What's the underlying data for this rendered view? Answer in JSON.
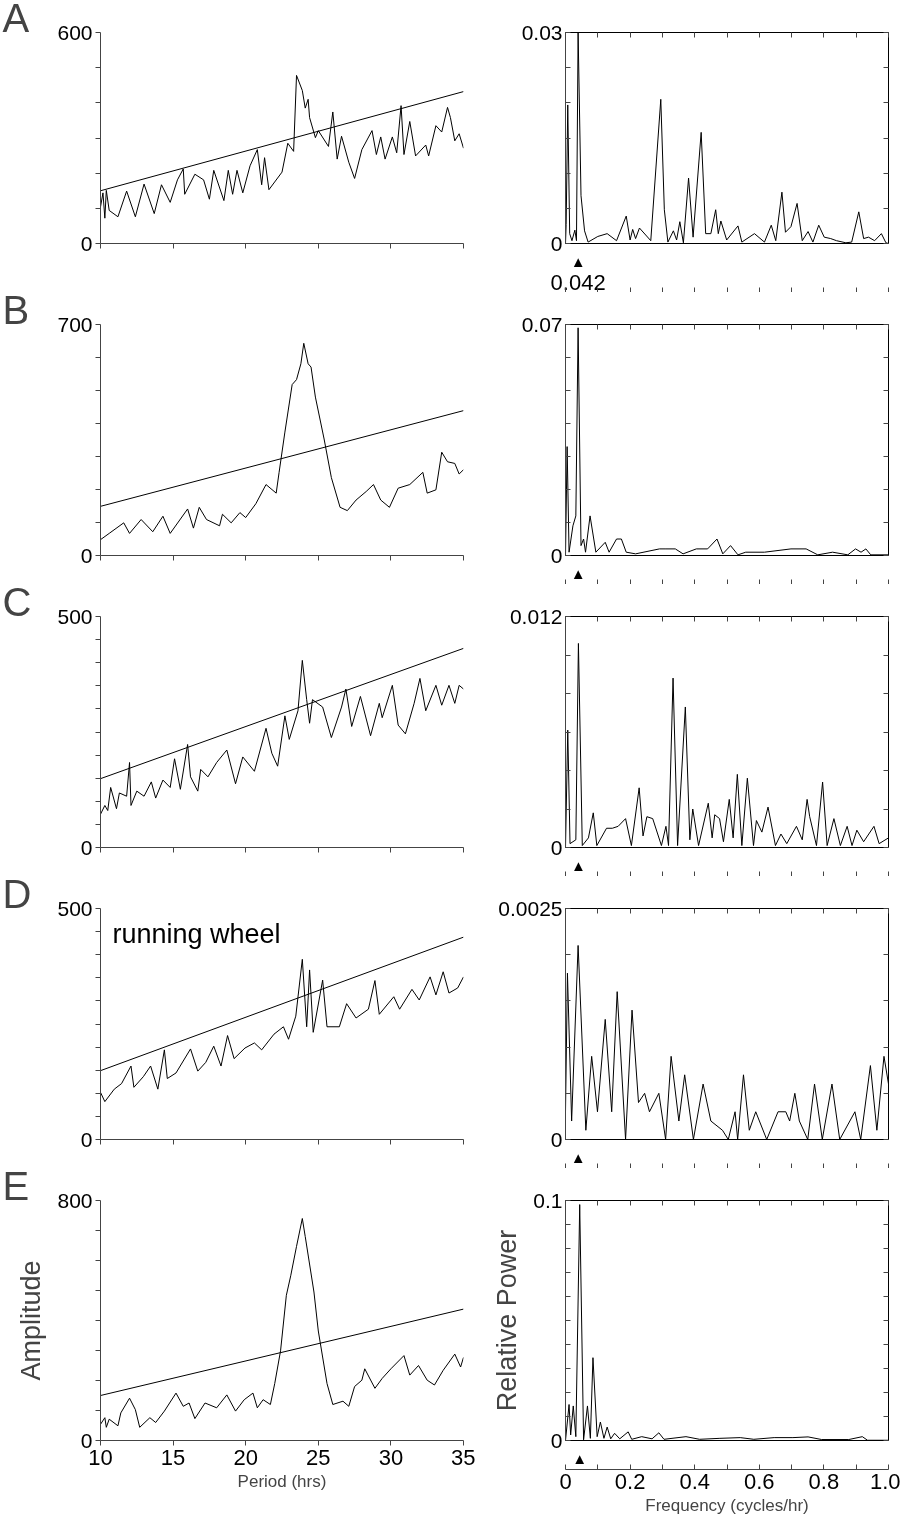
{
  "chart_data": [
    {
      "type": "line",
      "title": "A",
      "xlim": [
        10,
        35
      ],
      "ylim": [
        0,
        600
      ],
      "xticks": [
        10,
        15,
        20,
        25,
        30,
        35
      ],
      "yticks": [
        0,
        {
          "value": 100,
          "label": null
        },
        {
          "value": 200,
          "label": null
        },
        {
          "value": 300,
          "label": null
        },
        {
          "value": 400,
          "label": null
        },
        {
          "value": 500,
          "label": null
        },
        600
      ],
      "tick_labels": "y",
      "series": [
        {
          "type": "line",
          "color": "#000000",
          "x": [
            10,
            10.17,
            10.3,
            10.4,
            10.6,
            11.2,
            11.8,
            12.4,
            13.0,
            13.7,
            14.2,
            14.8,
            15.3,
            15.7,
            15.8,
            16.5,
            17.1,
            17.5,
            17.8,
            18.5,
            18.8,
            19.1,
            19.4,
            19.8,
            20.3,
            20.8,
            21.1,
            21.3,
            21.6,
            22.5,
            22.9,
            23.3,
            23.5,
            23.9,
            24.1,
            24.3,
            24.4,
            24.8,
            25.0,
            25.7,
            26.0,
            26.3,
            26.6,
            27.1,
            27.5,
            28.0,
            28.7,
            29.0,
            29.3,
            29.6,
            30.1,
            30.4,
            30.7,
            30.9,
            31.3,
            31.7,
            32.4,
            32.6,
            33.1,
            33.5,
            33.9,
            34.1,
            34.4,
            34.7,
            35.0
          ],
          "values": [
            104,
            144,
            72,
            151,
            94,
            76,
            149,
            76,
            169,
            85,
            167,
            117,
            181,
            212,
            140,
            197,
            181,
            126,
            208,
            122,
            208,
            140,
            208,
            144,
            221,
            267,
            167,
            244,
            153,
            203,
            285,
            262,
            478,
            435,
            385,
            410,
            358,
            301,
            321,
            276,
            374,
            240,
            305,
            231,
            185,
            267,
            321,
            253,
            303,
            240,
            303,
            258,
            392,
            253,
            347,
            249,
            280,
            249,
            335,
            317,
            387,
            358,
            292,
            312,
            271
          ]
        },
        {
          "type": "line",
          "color": "#000000",
          "x": [
            10,
            35
          ],
          "values": [
            150,
            432
          ]
        }
      ]
    },
    {
      "type": "line",
      "xlim": [
        0,
        1
      ],
      "ylim": [
        0,
        0.03
      ],
      "xticks": [
        0,
        0.1,
        0.2,
        0.3,
        0.4,
        0.5,
        0.6,
        0.7,
        0.8,
        0.9,
        1
      ],
      "yticks": [
        0,
        {
          "value": 0.005,
          "label": null
        },
        {
          "value": 0.01,
          "label": null
        },
        {
          "value": 0.015,
          "label": null
        },
        {
          "value": 0.02,
          "label": null
        },
        {
          "value": 0.025,
          "label": null
        },
        0.03
      ],
      "tick_labels": "y",
      "annotations": [
        "▲",
        "0.042"
      ],
      "series": [
        {
          "type": "line",
          "color": "#000000",
          "x": [
            0,
            0.002,
            0.007,
            0.013,
            0.02,
            0.029,
            0.034,
            0.039,
            0.048,
            0.059,
            0.07,
            0.1,
            0.129,
            0.158,
            0.188,
            0.2,
            0.208,
            0.217,
            0.229,
            0.264,
            0.295,
            0.306,
            0.317,
            0.334,
            0.344,
            0.354,
            0.365,
            0.381,
            0.395,
            0.42,
            0.434,
            0.45,
            0.465,
            0.473,
            0.481,
            0.499,
            0.534,
            0.546,
            0.585,
            0.616,
            0.637,
            0.651,
            0.67,
            0.681,
            0.698,
            0.717,
            0.733,
            0.751,
            0.766,
            0.784,
            0.801,
            0.821,
            0.839,
            0.868,
            0.886,
            0.908,
            0.923,
            0.938,
            0.957,
            0.978,
            0.992,
            1.0
          ],
          "values": [
            0,
            0.0027,
            0.0197,
            0.0014,
            0.0004,
            0.0019,
            0.0004,
            0.03,
            0.0068,
            0.0018,
            0.0002,
            0.001,
            0.0014,
            0.0004,
            0.0039,
            0.0005,
            0.002,
            0.0007,
            0.0022,
            0.0004,
            0.0205,
            0.0048,
            0.0002,
            0.0018,
            0.0005,
            0.0031,
            0.0001,
            0.0093,
            0.0009,
            0.0158,
            0.0014,
            0.0014,
            0.0048,
            0.0014,
            0.0032,
            0.0005,
            0.0025,
            0.0002,
            0.0014,
            0.0002,
            0.0026,
            0.0004,
            0.0073,
            0.0016,
            0.0024,
            0.0057,
            0.0004,
            0.0017,
            0.0002,
            0.0026,
            0.0009,
            0.0007,
            0.0004,
            0.0001,
            0.0002,
            0.0045,
            0.0007,
            0.0009,
            0.0004,
            0.0014,
            0.0001,
            0
          ]
        }
      ]
    },
    {
      "type": "line",
      "title": "B",
      "xlim": [
        10,
        35
      ],
      "ylim": [
        0,
        700
      ],
      "xticks": [
        10,
        15,
        20,
        25,
        30,
        35
      ],
      "yticks": [
        0,
        {
          "value": 100,
          "label": null
        },
        {
          "value": 200,
          "label": null
        },
        {
          "value": 300,
          "label": null
        },
        {
          "value": 400,
          "label": null
        },
        {
          "value": 500,
          "label": null
        },
        {
          "value": 600,
          "label": null
        },
        700
      ],
      "tick_labels": "y",
      "series": [
        {
          "type": "line",
          "color": "#000000",
          "x": [
            10,
            10.6,
            11.6,
            12.0,
            12.8,
            13.6,
            14.3,
            14.8,
            16.0,
            16.4,
            16.8,
            17.3,
            18.2,
            18.4,
            19.0,
            19.6,
            20.0,
            20.7,
            21.4,
            22.1,
            22.3,
            22.7,
            23.2,
            23.5,
            23.8,
            24.0,
            24.3,
            24.5,
            24.8,
            25.4,
            25.9,
            26.5,
            27.0,
            27.6,
            28.3,
            28.8,
            29.3,
            29.9,
            30.5,
            31.3,
            32.2,
            32.5,
            33.1,
            33.5,
            33.9,
            34.4,
            34.7,
            35.0
          ],
          "values": [
            48,
            67,
            99,
            67,
            109,
            72,
            119,
            67,
            141,
            83,
            146,
            109,
            90,
            125,
            99,
            130,
            115,
            157,
            215,
            189,
            252,
            374,
            518,
            533,
            581,
            643,
            581,
            571,
            480,
            353,
            236,
            146,
            136,
            168,
            194,
            215,
            168,
            146,
            204,
            215,
            252,
            189,
            199,
            313,
            284,
            279,
            247,
            260
          ]
        },
        {
          "type": "line",
          "color": "#000000",
          "x": [
            10,
            35
          ],
          "values": [
            149,
            439
          ]
        }
      ]
    },
    {
      "type": "line",
      "xlim": [
        0,
        1
      ],
      "ylim": [
        0,
        0.07
      ],
      "xticks": [
        0,
        0.1,
        0.2,
        0.3,
        0.4,
        0.5,
        0.6,
        0.7,
        0.8,
        0.9,
        1
      ],
      "yticks": [
        0,
        {
          "value": 0.01,
          "label": null
        },
        {
          "value": 0.02,
          "label": null
        },
        {
          "value": 0.03,
          "label": null
        },
        {
          "value": 0.04,
          "label": null
        },
        {
          "value": 0.05,
          "label": null
        },
        {
          "value": 0.06,
          "label": null
        },
        0.07
      ],
      "tick_labels": "y",
      "annotations": [
        "▲"
      ],
      "series": [
        {
          "type": "line",
          "color": "#000000",
          "x": [
            0,
            0.005,
            0.011,
            0.023,
            0.032,
            0.039,
            0.048,
            0.056,
            0.062,
            0.076,
            0.094,
            0.123,
            0.135,
            0.158,
            0.173,
            0.188,
            0.217,
            0.291,
            0.311,
            0.34,
            0.364,
            0.405,
            0.44,
            0.469,
            0.487,
            0.511,
            0.534,
            0.558,
            0.616,
            0.698,
            0.745,
            0.781,
            0.827,
            0.874,
            0.898,
            0.915,
            0.93,
            0.945,
            1.0
          ],
          "values": [
            0,
            0.033,
            0.001,
            0.009,
            0.012,
            0.069,
            0.003,
            0.005,
            0.001,
            0.012,
            0.001,
            0.004,
            0.001,
            0.005,
            0.005,
            0.001,
            0.0005,
            0.002,
            0.002,
            0.002,
            0.0005,
            0.002,
            0.002,
            0.005,
            0.0005,
            0.003,
            0.0002,
            0.001,
            0.001,
            0.002,
            0.002,
            0.0002,
            0.001,
            0.0002,
            0.002,
            0.001,
            0.002,
            0.0002,
            0.0002
          ]
        }
      ]
    },
    {
      "type": "line",
      "title": "C",
      "xlim": [
        10,
        35
      ],
      "ylim": [
        0,
        500
      ],
      "xticks": [
        10,
        15,
        20,
        25,
        30,
        35
      ],
      "yticks": [
        0,
        {
          "value": 50,
          "label": null
        },
        {
          "value": 100,
          "label": null
        },
        {
          "value": 150,
          "label": null
        },
        {
          "value": 200,
          "label": null
        },
        {
          "value": 250,
          "label": null
        },
        {
          "value": 300,
          "label": null
        },
        {
          "value": 350,
          "label": null
        },
        {
          "value": 400,
          "label": null
        },
        {
          "value": 450,
          "label": null
        },
        500
      ],
      "tick_labels": "y",
      "series": [
        {
          "type": "line",
          "color": "#000000",
          "x": [
            10,
            10.3,
            10.5,
            10.7,
            11.1,
            11.3,
            11.8,
            12.0,
            12.1,
            12.5,
            13.0,
            13.5,
            13.8,
            14.3,
            14.8,
            15.1,
            15.5,
            16.0,
            16.2,
            16.7,
            16.9,
            17.4,
            18.0,
            18.7,
            19.3,
            19.8,
            20.6,
            21.4,
            21.8,
            22.2,
            22.7,
            23.0,
            23.6,
            23.9,
            24.2,
            24.4,
            24.6,
            25.3,
            25.9,
            26.6,
            26.9,
            27.3,
            27.9,
            28.6,
            29.2,
            29.4,
            30.1,
            30.5,
            31.0,
            31.6,
            32.0,
            32.4,
            33.1,
            33.5,
            34.0,
            34.4,
            34.7,
            35.0
          ],
          "values": [
            72,
            91,
            80,
            130,
            84,
            118,
            111,
            184,
            91,
            122,
            111,
            142,
            107,
            146,
            130,
            192,
            126,
            223,
            153,
            122,
            169,
            153,
            184,
            211,
            138,
            196,
            165,
            258,
            204,
            176,
            285,
            234,
            296,
            405,
            320,
            269,
            320,
            304,
            238,
            304,
            343,
            262,
            327,
            242,
            312,
            281,
            351,
            265,
            246,
            312,
            366,
            296,
            351,
            308,
            351,
            312,
            351,
            343
          ]
        },
        {
          "type": "line",
          "color": "#000000",
          "x": [
            10,
            35
          ],
          "values": [
            149,
            431
          ]
        }
      ]
    },
    {
      "type": "line",
      "xlim": [
        0,
        1
      ],
      "ylim": [
        0,
        0.012
      ],
      "xticks": [
        0,
        0.1,
        0.2,
        0.3,
        0.4,
        0.5,
        0.6,
        0.7,
        0.8,
        0.9,
        1
      ],
      "yticks": [
        0,
        {
          "value": 0.002,
          "label": null
        },
        {
          "value": 0.004,
          "label": null
        },
        {
          "value": 0.006,
          "label": null
        },
        {
          "value": 0.008,
          "label": null
        },
        {
          "value": 0.01,
          "label": null
        },
        0.012
      ],
      "tick_labels": "y",
      "annotations": [
        "▲"
      ],
      "series": [
        {
          "type": "line",
          "color": "#000000",
          "x": [
            0,
            0.007,
            0.014,
            0.032,
            0.04,
            0.052,
            0.071,
            0.086,
            0.097,
            0.127,
            0.145,
            0.163,
            0.186,
            0.204,
            0.228,
            0.24,
            0.252,
            0.27,
            0.297,
            0.311,
            0.319,
            0.333,
            0.347,
            0.371,
            0.385,
            0.394,
            0.412,
            0.442,
            0.454,
            0.462,
            0.477,
            0.489,
            0.507,
            0.519,
            0.532,
            0.546,
            0.563,
            0.582,
            0.591,
            0.608,
            0.627,
            0.65,
            0.667,
            0.685,
            0.715,
            0.733,
            0.748,
            0.756,
            0.777,
            0.796,
            0.81,
            0.831,
            0.851,
            0.872,
            0.887,
            0.902,
            0.923,
            0.955,
            0.971,
            1.0
          ],
          "values": [
            0,
            0.0061,
            0.0002,
            0.0004,
            0.0106,
            0.0001,
            0.0005,
            0.0018,
            0.0001,
            0.001,
            0.001,
            0.0011,
            0.0015,
            0.0001,
            0.0031,
            0.0006,
            0.0016,
            0.0015,
            0.0001,
            0.0011,
            0.0001,
            0.0088,
            0.0001,
            0.0073,
            0.0004,
            0.002,
            0.0001,
            0.0023,
            0.0005,
            0.0017,
            0.0015,
            0.0003,
            0.0025,
            0.0005,
            0.0038,
            0.0001,
            0.0036,
            0.0001,
            0.0014,
            0.0008,
            0.0021,
            0.0001,
            0.0007,
            0.0002,
            0.0011,
            0.0004,
            0.0025,
            0.0016,
            0.0001,
            0.0034,
            0.0001,
            0.0015,
            0.0001,
            0.0011,
            0.0001,
            0.0009,
            0.0003,
            0.0011,
            0.0002,
            0.0005
          ]
        }
      ]
    },
    {
      "type": "line",
      "title": "D",
      "xlim": [
        10,
        35
      ],
      "ylim": [
        0,
        500
      ],
      "xticks": [
        10,
        15,
        20,
        25,
        30,
        35
      ],
      "yticks": [
        0,
        {
          "value": 50,
          "label": null
        },
        {
          "value": 100,
          "label": null
        },
        {
          "value": 150,
          "label": null
        },
        {
          "value": 200,
          "label": null
        },
        {
          "value": 250,
          "label": null
        },
        {
          "value": 300,
          "label": null
        },
        {
          "value": 350,
          "label": null
        },
        {
          "value": 400,
          "label": null
        },
        {
          "value": 450,
          "label": null
        },
        500
      ],
      "tick_labels": "y",
      "annotations": [
        "running wheel"
      ],
      "series": [
        {
          "type": "line",
          "color": "#000000",
          "x": [
            10,
            10.3,
            10.95,
            11.45,
            12.1,
            12.3,
            12.95,
            13.45,
            13.95,
            14.4,
            14.6,
            15.2,
            16.2,
            16.7,
            17.25,
            17.8,
            18.3,
            18.75,
            19.2,
            19.95,
            20.6,
            21.1,
            21.95,
            22.6,
            22.95,
            23.45,
            23.9,
            24.2,
            24.4,
            24.65,
            25.3,
            25.6,
            26.45,
            26.95,
            27.6,
            28.45,
            28.9,
            29.2,
            30.2,
            30.6,
            31.45,
            31.95,
            32.7,
            33.1,
            33.6,
            34.0,
            34.6,
            35.0
          ],
          "values": [
            102,
            82,
            109,
            121,
            159,
            113,
            136,
            159,
            109,
            194,
            132,
            144,
            196,
            148,
            167,
            202,
            159,
            225,
            175,
            198,
            209,
            194,
            228,
            244,
            217,
            267,
            390,
            244,
            367,
            232,
            345,
            244,
            244,
            294,
            263,
            282,
            344,
            271,
            309,
            282,
            325,
            302,
            352,
            313,
            363,
            317,
            328,
            352
          ]
        },
        {
          "type": "line",
          "color": "#000000",
          "x": [
            10,
            35
          ],
          "values": [
            149,
            438
          ]
        }
      ]
    },
    {
      "type": "line",
      "xlim": [
        0,
        1
      ],
      "ylim": [
        0,
        0.0025
      ],
      "xticks": [
        0,
        0.1,
        0.2,
        0.3,
        0.4,
        0.5,
        0.6,
        0.7,
        0.8,
        0.9,
        1
      ],
      "yticks": [
        0,
        {
          "value": 0.0005,
          "label": null
        },
        {
          "value": 0.001,
          "label": null
        },
        {
          "value": 0.0015,
          "label": null
        },
        {
          "value": 0.002,
          "label": null
        },
        0.0025
      ],
      "tick_labels": "y",
      "annotations": [
        "▲"
      ],
      "series": [
        {
          "type": "line",
          "color": "#000000",
          "x": [
            0,
            0.006,
            0.019,
            0.039,
            0.063,
            0.081,
            0.099,
            0.123,
            0.143,
            0.16,
            0.186,
            0.206,
            0.226,
            0.245,
            0.26,
            0.289,
            0.31,
            0.327,
            0.351,
            0.369,
            0.396,
            0.426,
            0.45,
            0.486,
            0.504,
            0.525,
            0.533,
            0.551,
            0.569,
            0.589,
            0.623,
            0.658,
            0.682,
            0.694,
            0.71,
            0.724,
            0.75,
            0.771,
            0.795,
            0.825,
            0.849,
            0.896,
            0.914,
            0.944,
            0.964,
            0.986,
            1.0
          ],
          "values": [
            0.0003,
            0.0018,
            0.0002,
            0.0021,
            0.0001,
            0.0009,
            0.0003,
            0.0013,
            0.0003,
            0.0016,
            0,
            0.0014,
            0.0004,
            0.0005,
            0.0003,
            0.0005,
            0,
            0.0009,
            0.0002,
            0.0007,
            0,
            0.0006,
            0.0002,
            0.0001,
            0,
            0.0003,
            0,
            0.0007,
            0.0001,
            0.0003,
            0,
            0.0003,
            0.0003,
            0.0002,
            0.0005,
            0.0002,
            0,
            0.0006,
            0,
            0.0006,
            0,
            0.0003,
            0,
            0.0008,
            0.0001,
            0.0009,
            0.0006
          ]
        }
      ]
    },
    {
      "type": "line",
      "title": "E",
      "xlabel": "Period (hrs)",
      "ylabel": "Amplitude",
      "xlim": [
        10,
        35
      ],
      "ylim": [
        0,
        800
      ],
      "xticks": [
        10,
        15,
        20,
        25,
        30,
        35
      ],
      "yticks": [
        0,
        {
          "value": 100,
          "label": null
        },
        {
          "value": 200,
          "label": null
        },
        {
          "value": 300,
          "label": null
        },
        {
          "value": 400,
          "label": null
        },
        {
          "value": 500,
          "label": null
        },
        {
          "value": 600,
          "label": null
        },
        {
          "value": 700,
          "label": null
        },
        800
      ],
      "series": [
        {
          "type": "line",
          "color": "#000000",
          "x": [
            10,
            10.3,
            10.4,
            10.6,
            11.2,
            11.4,
            12.0,
            12.4,
            12.7,
            13.4,
            13.8,
            14.4,
            15.2,
            15.7,
            16.1,
            16.5,
            17.2,
            18.0,
            18.7,
            19.3,
            19.9,
            20.5,
            20.8,
            21.2,
            21.7,
            22.0,
            22.4,
            22.8,
            23.1,
            23.5,
            23.9,
            24.1,
            24.7,
            25.0,
            25.6,
            26.0,
            26.7,
            27.1,
            27.5,
            28.0,
            28.2,
            28.9,
            29.4,
            30.0,
            30.9,
            31.3,
            31.9,
            32.5,
            33.0,
            33.6,
            34.4,
            34.8,
            35.0
          ],
          "values": [
            54,
            76,
            44,
            71,
            49,
            92,
            141,
            103,
            44,
            76,
            60,
            98,
            158,
            114,
            125,
            73,
            125,
            109,
            152,
            98,
            136,
            158,
            109,
            136,
            120,
            190,
            299,
            484,
            549,
            647,
            740,
            680,
            495,
            365,
            190,
            120,
            131,
            114,
            180,
            201,
            239,
            174,
            207,
            239,
            283,
            218,
            250,
            201,
            185,
            234,
            288,
            245,
            277
          ]
        },
        {
          "type": "line",
          "color": "#000000",
          "x": [
            10,
            35
          ],
          "values": [
            150,
            438
          ]
        }
      ]
    },
    {
      "type": "line",
      "xlabel": "Frequency (cycles/hr)",
      "ylabel": "Relative Power",
      "xlim": [
        0,
        1
      ],
      "ylim": [
        0,
        0.1
      ],
      "xticks": [
        0,
        {
          "value": 0.1,
          "label": null
        },
        0.2,
        {
          "value": 0.3,
          "label": null
        },
        0.4,
        {
          "value": 0.5,
          "label": null
        },
        0.6,
        {
          "value": 0.7,
          "label": null
        },
        0.8,
        {
          "value": 0.9,
          "label": null
        },
        {
          "value": 1,
          "label": "1.0"
        }
      ],
      "yticks": [
        0,
        {
          "value": 0.01,
          "label": null
        },
        {
          "value": 0.02,
          "label": null
        },
        {
          "value": 0.03,
          "label": null
        },
        {
          "value": 0.04,
          "label": null
        },
        {
          "value": 0.05,
          "label": null
        },
        {
          "value": 0.06,
          "label": null
        },
        {
          "value": 0.07,
          "label": null
        },
        {
          "value": 0.08,
          "label": null
        },
        {
          "value": 0.09,
          "label": null
        },
        0.1
      ],
      "annotations": [
        "▲"
      ],
      "series": [
        {
          "type": "line",
          "color": "#000000",
          "x": [
            0,
            0.011,
            0.016,
            0.024,
            0.032,
            0.044,
            0.056,
            0.068,
            0.077,
            0.085,
            0.098,
            0.108,
            0.119,
            0.129,
            0.14,
            0.152,
            0.168,
            0.194,
            0.205,
            0.236,
            0.268,
            0.289,
            0.305,
            0.373,
            0.415,
            0.478,
            0.541,
            0.583,
            0.646,
            0.704,
            0.751,
            0.793,
            0.877,
            0.919,
            0.935,
            1.0
          ],
          "values": [
            0,
            0.015,
            0.0023,
            0.0144,
            0.0016,
            0.0983,
            0.0003,
            0.0144,
            0.0009,
            0.0345,
            0.0016,
            0.0077,
            0.0009,
            0.0056,
            0.0007,
            0.003,
            0.0007,
            0.0036,
            0.0005,
            0.0016,
            0.0007,
            0.0032,
            0.0005,
            0.0016,
            0.0005,
            0.0009,
            0.0012,
            0.0005,
            0.0012,
            0.0012,
            0.0015,
            0.0004,
            0.0004,
            0.0016,
            0.0001,
            0.0001
          ]
        }
      ]
    }
  ]
}
